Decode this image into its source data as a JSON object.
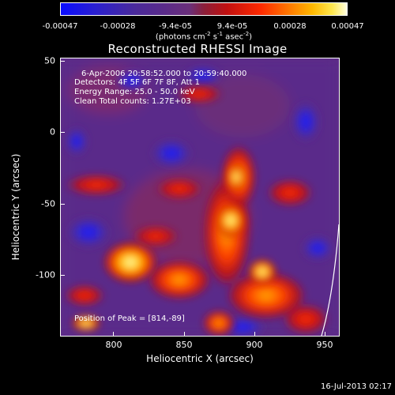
{
  "colorbar": {
    "ticks": [
      "-0.00047",
      "-0.00028",
      "-9.4e-05",
      "9.4e-05",
      "0.00028",
      "0.00047"
    ],
    "unit_prefix": "(photons cm",
    "unit_exp1": "-2",
    "unit_mid": " s",
    "unit_exp2": "-1",
    "unit_mid2": " asec",
    "unit_exp3": "-2",
    "unit_suffix": ")"
  },
  "title": "Reconstructed RHESSI Image",
  "info": {
    "time": "6-Apr-2006 20:58:52.000 to 20:59:40.000",
    "detectors": "Detectors: 4F 5F 6F 7F 8F, Att 1",
    "energy": "Energy Range: 25.0 - 50.0 keV",
    "clean": "Clean     Total counts: 1.27E+03",
    "peak": "Position of Peak = [814,-89]"
  },
  "axes": {
    "xlabel": "Heliocentric X (arcsec)",
    "ylabel": "Heliocentric Y (arcsec)",
    "xticks": [
      "800",
      "850",
      "900",
      "950"
    ],
    "yticks": [
      "50",
      "0",
      "-50",
      "-100"
    ]
  },
  "timestamp": "16-Jul-2013 02:17",
  "colors": {
    "background": "#000000",
    "low": "#0a0cff",
    "mid": "#6a2f7a",
    "high": "#ffffe0"
  }
}
